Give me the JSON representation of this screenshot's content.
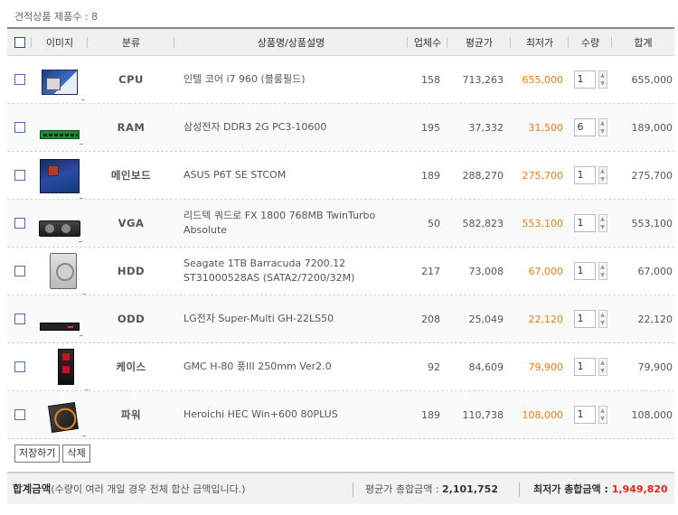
{
  "header_count": "견적상품 제품수 : 8",
  "columns": {
    "image": "이미지",
    "category": "분류",
    "name": "상품명/상품설명",
    "sellers": "업체수",
    "avg_price": "평균가",
    "low_price": "최저가",
    "qty": "수량",
    "total": "합계"
  },
  "items": [
    {
      "category": "CPU",
      "thumb": "cpu-box",
      "name": "인텔 코어 i7 960 (블룸필드)",
      "sellers": "158",
      "avg": "713,263",
      "low": "655,000",
      "qty": "1",
      "total": "655,000"
    },
    {
      "category": "RAM",
      "thumb": "ram-stick",
      "name": "삼성전자 DDR3 2G PC3-10600",
      "sellers": "195",
      "avg": "37,332",
      "low": "31,500",
      "qty": "6",
      "total": "189,000"
    },
    {
      "category": "메인보드",
      "thumb": "motherboard",
      "name": "ASUS P6T SE STCOM",
      "sellers": "189",
      "avg": "288,270",
      "low": "275,700",
      "qty": "1",
      "total": "275,700"
    },
    {
      "category": "VGA",
      "thumb": "graphics-card",
      "name": "리드텍 쿼드로 FX 1800 768MB TwinTurbo Absolute",
      "sellers": "50",
      "avg": "582,823",
      "low": "553,100",
      "qty": "1",
      "total": "553,100"
    },
    {
      "category": "HDD",
      "thumb": "hard-drive",
      "name": "Seagate 1TB Barracuda 7200.12 ST31000528AS (SATA2/7200/32M)",
      "sellers": "217",
      "avg": "73,008",
      "low": "67,000",
      "qty": "1",
      "total": "67,000"
    },
    {
      "category": "ODD",
      "thumb": "optical-drive",
      "name": "LG전자 Super-Multi GH-22LS50",
      "sellers": "208",
      "avg": "25,049",
      "low": "22,120",
      "qty": "1",
      "total": "22,120"
    },
    {
      "category": "케이스",
      "thumb": "pc-case",
      "name": "GMC H-80 풍III 250mm Ver2.0",
      "sellers": "92",
      "avg": "84,609",
      "low": "79,900",
      "qty": "1",
      "total": "79,900"
    },
    {
      "category": "파워",
      "thumb": "power-supply",
      "name": "Heroichi HEC Win+600 80PLUS",
      "sellers": "189",
      "avg": "110,738",
      "low": "108,000",
      "qty": "1",
      "total": "108,000"
    }
  ],
  "buttons": {
    "save": "저장하기",
    "delete": "삭제"
  },
  "summary": {
    "title": "합계금액",
    "note": "(수량이 여러 개일 경우 전체 합산 금액입니다.)",
    "avg_label": "평균가 총합금액 : ",
    "avg_value": "2,101,752",
    "low_label": "최저가 총합금액 : ",
    "low_value": "1,949,820"
  },
  "colors": {
    "accent_orange": "#f07b12",
    "total_red": "#e0291a",
    "checkbox_blue": "#4a6fb0"
  }
}
